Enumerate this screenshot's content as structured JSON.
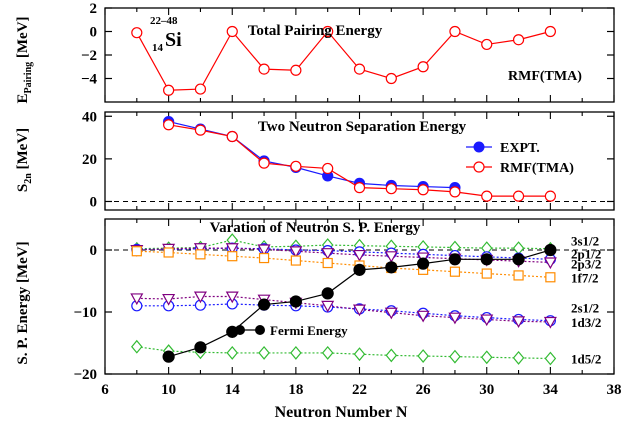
{
  "chart_data": [
    {
      "type": "line",
      "title": "Total Pairing Energy",
      "ylabel": "E_Pairing [MeV]",
      "ylabel_main": "E",
      "ylabel_sub": "Pairing",
      "ylabel_unit": " [MeV]",
      "ylim": [
        -6,
        2
      ],
      "xlim": [
        6,
        38
      ],
      "yticks": [
        2,
        0,
        -2,
        -4
      ],
      "nucleus": {
        "mass": "22–48",
        "charge": "14",
        "symbol": "Si"
      },
      "annotation": "RMF(TMA)",
      "series": [
        {
          "style": "red-open-circle",
          "x": [
            8,
            10,
            12,
            14,
            16,
            18,
            20,
            22,
            24,
            26,
            28,
            30,
            32,
            34
          ],
          "y": [
            -0.1,
            -5.0,
            -4.9,
            0.0,
            -3.2,
            -3.3,
            0.0,
            -3.2,
            -4.0,
            -3.0,
            0.0,
            -1.1,
            -0.7,
            0.0
          ]
        }
      ]
    },
    {
      "type": "line",
      "title": "Two Neutron Separation Energy",
      "ylabel": "S_2n [MeV]",
      "ylabel_main": "S",
      "ylabel_sub": "2n",
      "ylabel_unit": " [MeV]",
      "ylim": [
        -4,
        42
      ],
      "xlim": [
        6,
        38
      ],
      "yticks": [
        40,
        20,
        0
      ],
      "zero_line": true,
      "series": [
        {
          "name": "EXPT.",
          "style": "blue-filled-circle",
          "x": [
            10,
            12,
            14,
            16,
            18,
            20,
            22,
            24,
            26,
            28
          ],
          "y": [
            37.5,
            34.0,
            30.5,
            19.0,
            16.0,
            12.0,
            8.5,
            7.5,
            7.0,
            6.5
          ]
        },
        {
          "name": "RMF(TMA)",
          "style": "red-open-circle",
          "x": [
            10,
            12,
            14,
            16,
            18,
            20,
            22,
            24,
            26,
            28,
            30,
            32,
            34
          ],
          "y": [
            36.0,
            33.5,
            30.5,
            18.0,
            16.5,
            15.5,
            6.5,
            6.0,
            5.5,
            4.5,
            2.5,
            2.5,
            2.5
          ]
        }
      ]
    },
    {
      "type": "line",
      "title": "Varation of Neutron S. P. Energy",
      "ylabel": "S. P. Energy [MeV]",
      "xlabel": "Neutron Number N",
      "ylim": [
        -20,
        5
      ],
      "xlim": [
        6,
        38
      ],
      "yticks": [
        0,
        -10,
        -20
      ],
      "xticks": [
        6,
        10,
        14,
        18,
        22,
        26,
        30,
        34,
        38
      ],
      "zero_line": true,
      "fermi_legend": "Fermi Energy",
      "level_labels": [
        {
          "text": "3s1/2",
          "y": 1.5
        },
        {
          "text": "2p1/2",
          "y": -0.6
        },
        {
          "text": "2p3/2",
          "y": -2.2
        },
        {
          "text": "1f7/2",
          "y": -4.4
        },
        {
          "text": "2s1/2",
          "y": -9.3
        },
        {
          "text": "1d3/2",
          "y": -11.6
        },
        {
          "text": "1d5/2",
          "y": -17.5
        }
      ],
      "series": [
        {
          "name": "3s1/2",
          "style": "green-open-diamond",
          "x": [
            8,
            10,
            12,
            14,
            16,
            18,
            20,
            22,
            24,
            26,
            28,
            30,
            32,
            34
          ],
          "y": [
            0.2,
            0.3,
            0.4,
            1.6,
            0.5,
            0.6,
            0.8,
            0.7,
            0.6,
            0.5,
            0.4,
            0.3,
            0.3,
            0.2
          ]
        },
        {
          "name": "2p1/2",
          "style": "blue-open-circle",
          "x": [
            8,
            10,
            12,
            14,
            16,
            18,
            20,
            22,
            24,
            26,
            28,
            30,
            32,
            34
          ],
          "y": [
            0.1,
            0.1,
            0.2,
            0.3,
            0.2,
            0.0,
            -0.1,
            -0.3,
            -0.5,
            -0.7,
            -0.9,
            -1.1,
            -1.3,
            -1.5
          ]
        },
        {
          "name": "2p3/2",
          "style": "purple-open-triangle",
          "x": [
            8,
            10,
            12,
            14,
            16,
            18,
            20,
            22,
            24,
            26,
            28,
            30,
            32,
            34
          ],
          "y": [
            0.0,
            0.2,
            0.3,
            0.3,
            0.1,
            -0.2,
            -0.5,
            -0.8,
            -1.0,
            -1.2,
            -1.4,
            -1.6,
            -1.8,
            -2.0
          ]
        },
        {
          "name": "1f7/2",
          "style": "orange-open-square",
          "x": [
            8,
            10,
            12,
            14,
            16,
            18,
            20,
            22,
            24,
            26,
            28,
            30,
            32,
            34
          ],
          "y": [
            -0.2,
            -0.4,
            -0.7,
            -1.0,
            -1.3,
            -1.7,
            -2.1,
            -2.5,
            -2.9,
            -3.2,
            -3.5,
            -3.8,
            -4.1,
            -4.4
          ]
        },
        {
          "name": "2s1/2",
          "style": "blue-open-circle",
          "x": [
            8,
            10,
            12,
            14,
            16,
            18,
            20,
            22,
            24,
            26,
            28,
            30,
            32,
            34
          ],
          "y": [
            -9.0,
            -9.0,
            -8.9,
            -8.7,
            -8.9,
            -9.0,
            -9.2,
            -9.5,
            -9.8,
            -10.2,
            -10.6,
            -10.9,
            -11.2,
            -11.4
          ]
        },
        {
          "name": "1d3/2",
          "style": "purple-open-triangle",
          "x": [
            8,
            10,
            12,
            14,
            16,
            18,
            20,
            22,
            24,
            26,
            28,
            30,
            32,
            34
          ],
          "y": [
            -7.8,
            -7.9,
            -7.5,
            -7.5,
            -8.0,
            -8.5,
            -9.0,
            -9.6,
            -10.1,
            -10.6,
            -10.9,
            -11.2,
            -11.5,
            -11.6
          ]
        },
        {
          "name": "1d5/2",
          "style": "green-open-diamond",
          "x": [
            8,
            10,
            12,
            14,
            16,
            18,
            20,
            22,
            24,
            26,
            28,
            30,
            32,
            34
          ],
          "y": [
            -15.6,
            -16.3,
            -16.5,
            -16.6,
            -16.6,
            -16.6,
            -16.6,
            -16.8,
            -17.0,
            -17.1,
            -17.2,
            -17.3,
            -17.4,
            -17.5
          ]
        },
        {
          "name": "Fermi Energy",
          "style": "black-filled-circle",
          "x": [
            10,
            12,
            14,
            16,
            18,
            20,
            22,
            24,
            26,
            28,
            30,
            32,
            34
          ],
          "y": [
            -17.2,
            -15.7,
            -13.2,
            -8.8,
            -8.3,
            -7.0,
            -3.2,
            -2.8,
            -2.2,
            -1.5,
            -1.5,
            -1.5,
            0.0
          ]
        }
      ]
    }
  ]
}
